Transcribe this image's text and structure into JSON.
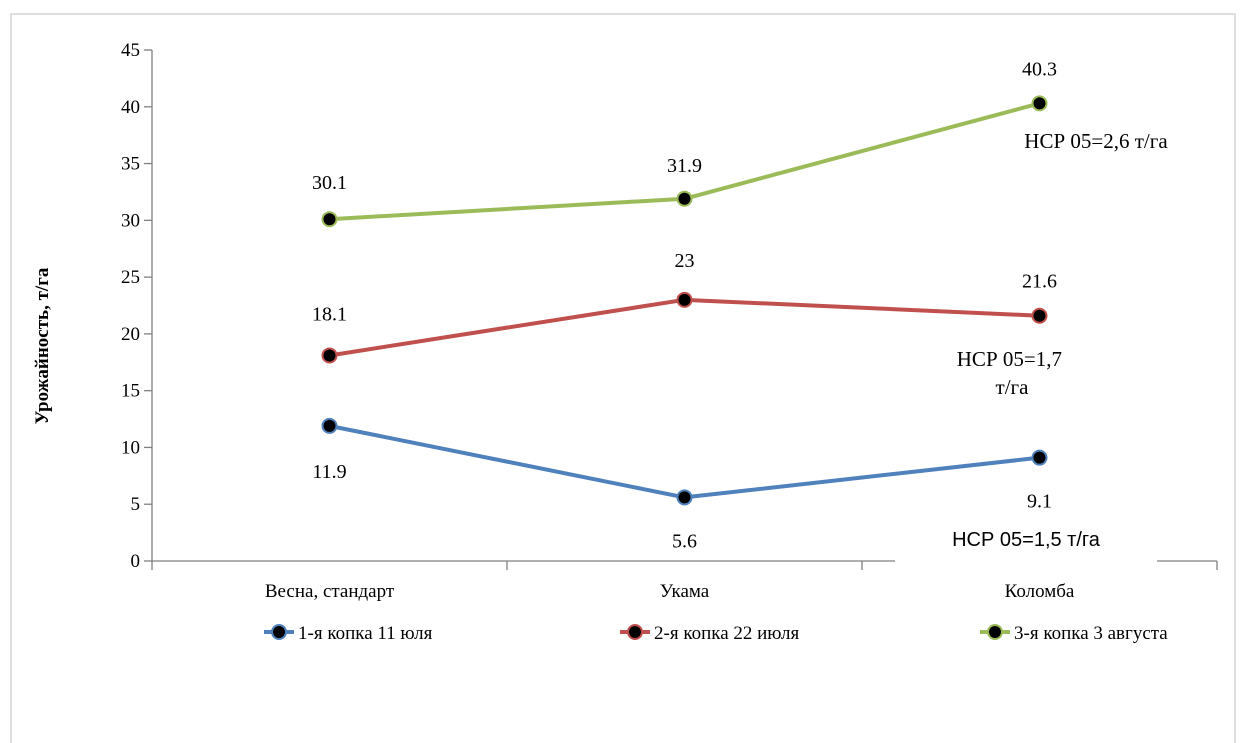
{
  "chart_data": {
    "type": "line",
    "ylabel": "Урожайность, т/га",
    "xlabel": "",
    "ylim": [
      0,
      45
    ],
    "yticks": [
      0,
      5,
      10,
      15,
      20,
      25,
      30,
      35,
      40,
      45
    ],
    "categories": [
      "Весна, стандарт",
      "Укама",
      "Коломба"
    ],
    "grid": false,
    "legend_position": "bottom",
    "series": [
      {
        "name": "1-я копка 11 юля",
        "color": "#4f81bd",
        "values": [
          11.9,
          5.6,
          9.1
        ],
        "labels": [
          "11.9",
          "5.6",
          "9.1"
        ],
        "annotation": "НСР 05=1,5 т/га"
      },
      {
        "name": "2-я копка 22 июля",
        "color": "#c0504d",
        "values": [
          18.1,
          23,
          21.6
        ],
        "labels": [
          "18.1",
          "23",
          "21.6"
        ],
        "annotation": "НСР 05=1,7 т/га"
      },
      {
        "name": "3-я копка 3 августа",
        "color": "#9bbb59",
        "values": [
          30.1,
          31.9,
          40.3
        ],
        "labels": [
          "30.1",
          "31.9",
          "40.3"
        ],
        "annotation": "НСР 05=2,6 т/га"
      }
    ]
  }
}
